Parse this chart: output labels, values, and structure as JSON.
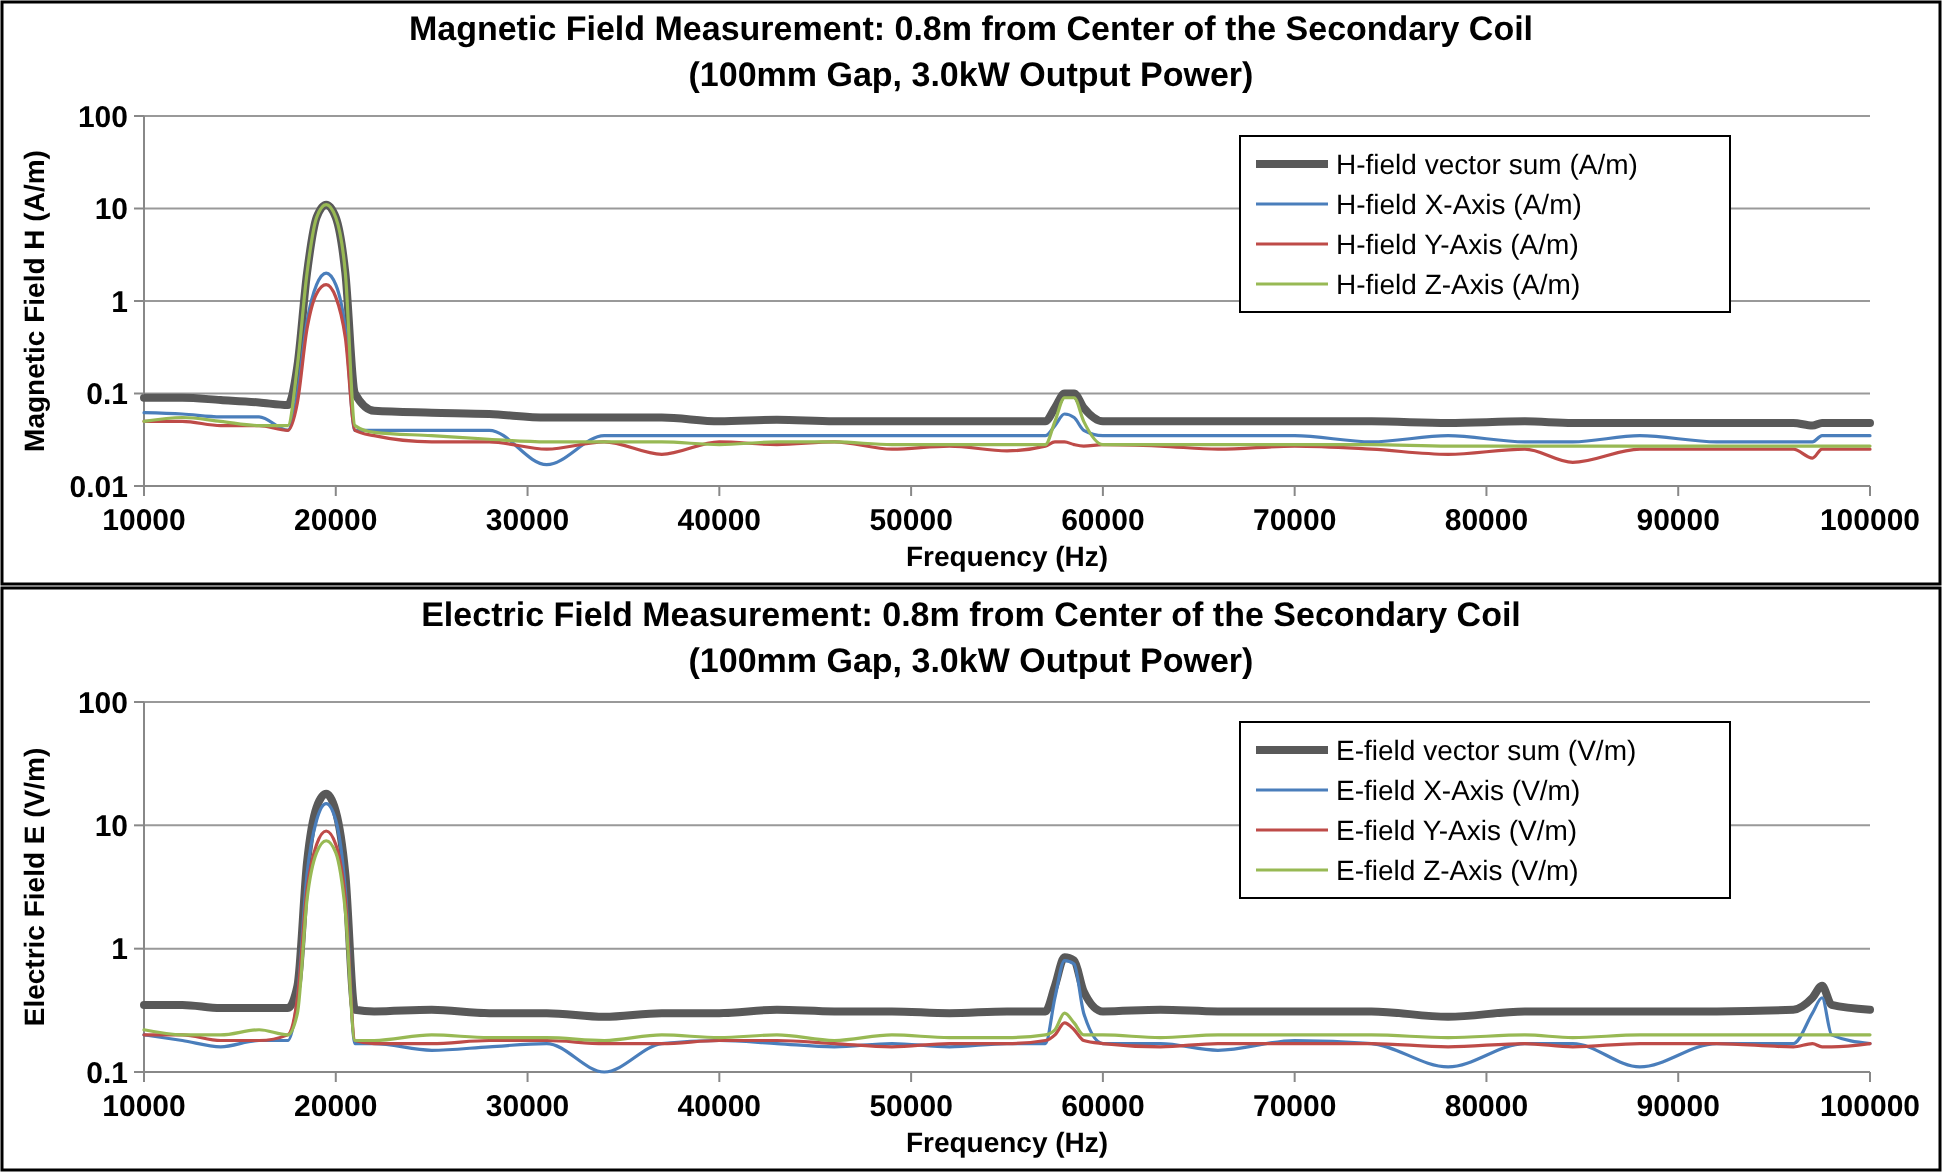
{
  "chart_data": [
    {
      "type": "line",
      "title": "Magnetic Field Measurement: 0.8m from Center of the Secondary Coil",
      "subtitle": "(100mm Gap, 3.0kW Output Power)",
      "xlabel": "Frequency (Hz)",
      "ylabel": "Magnetic Field H (A/m)",
      "log": "y",
      "grid": "y",
      "legend": "top right",
      "xlim": [
        10000,
        100000
      ],
      "xticks": [
        10000,
        20000,
        30000,
        40000,
        50000,
        60000,
        70000,
        80000,
        90000,
        100000
      ],
      "ylim": [
        0.01,
        100
      ],
      "yticks": [
        0.01,
        0.1,
        1,
        10,
        100
      ],
      "x": [
        10000,
        12000,
        14000,
        16000,
        17500,
        18000,
        18500,
        19000,
        19500,
        20000,
        20500,
        21000,
        22000,
        25000,
        28000,
        31000,
        34000,
        37000,
        40000,
        43000,
        46000,
        49000,
        52000,
        55000,
        57000,
        57500,
        58000,
        58500,
        59000,
        60000,
        63000,
        66000,
        70000,
        74000,
        78000,
        82000,
        84500,
        88000,
        92000,
        96000,
        97000,
        97500,
        98000,
        100000
      ],
      "series": [
        {
          "name": "H-field vector sum (A/m)",
          "color": "#595959",
          "values": [
            0.09,
            0.09,
            0.085,
            0.08,
            0.075,
            0.2,
            2,
            8,
            11,
            8,
            2,
            0.1,
            0.065,
            0.062,
            0.06,
            0.055,
            0.055,
            0.055,
            0.05,
            0.052,
            0.05,
            0.05,
            0.05,
            0.05,
            0.05,
            0.07,
            0.1,
            0.1,
            0.07,
            0.05,
            0.05,
            0.05,
            0.05,
            0.05,
            0.048,
            0.05,
            0.048,
            0.048,
            0.048,
            0.048,
            0.045,
            0.048,
            0.048,
            0.048
          ]
        },
        {
          "name": "H-field X-Axis (A/m)",
          "color": "#4a7ebb",
          "values": [
            0.062,
            0.06,
            0.056,
            0.056,
            0.04,
            0.1,
            0.6,
            1.5,
            2,
            1.5,
            0.5,
            0.04,
            0.04,
            0.04,
            0.04,
            0.017,
            0.035,
            0.035,
            0.035,
            0.035,
            0.035,
            0.035,
            0.035,
            0.035,
            0.035,
            0.045,
            0.06,
            0.055,
            0.04,
            0.035,
            0.035,
            0.035,
            0.035,
            0.03,
            0.035,
            0.03,
            0.03,
            0.035,
            0.03,
            0.03,
            0.03,
            0.035,
            0.035,
            0.035
          ]
        },
        {
          "name": "H-field Y-Axis (A/m)",
          "color": "#be4b48",
          "values": [
            0.05,
            0.05,
            0.045,
            0.045,
            0.04,
            0.08,
            0.5,
            1.2,
            1.5,
            1.1,
            0.4,
            0.04,
            0.035,
            0.03,
            0.03,
            0.025,
            0.03,
            0.022,
            0.03,
            0.028,
            0.03,
            0.025,
            0.027,
            0.024,
            0.027,
            0.03,
            0.03,
            0.028,
            0.027,
            0.028,
            0.027,
            0.025,
            0.027,
            0.025,
            0.022,
            0.025,
            0.018,
            0.025,
            0.025,
            0.025,
            0.02,
            0.025,
            0.025,
            0.025
          ]
        },
        {
          "name": "H-field Z-Axis (A/m)",
          "color": "#98b954",
          "values": [
            0.05,
            0.055,
            0.05,
            0.045,
            0.045,
            0.2,
            2,
            8,
            11,
            8,
            2,
            0.045,
            0.038,
            0.035,
            0.032,
            0.03,
            0.03,
            0.03,
            0.028,
            0.03,
            0.03,
            0.028,
            0.028,
            0.028,
            0.028,
            0.05,
            0.09,
            0.09,
            0.05,
            0.028,
            0.028,
            0.028,
            0.028,
            0.028,
            0.027,
            0.027,
            0.027,
            0.027,
            0.027,
            0.027,
            0.027,
            0.027,
            0.027,
            0.027
          ]
        }
      ]
    },
    {
      "type": "line",
      "title": "Electric Field Measurement: 0.8m from Center of the Secondary Coil",
      "subtitle": "(100mm Gap, 3.0kW Output Power)",
      "xlabel": "Frequency (Hz)",
      "ylabel": "Electric Field E (V/m)",
      "log": "y",
      "grid": "y",
      "legend": "top right",
      "xlim": [
        10000,
        100000
      ],
      "xticks": [
        10000,
        20000,
        30000,
        40000,
        50000,
        60000,
        70000,
        80000,
        90000,
        100000
      ],
      "ylim": [
        0.1,
        100
      ],
      "yticks": [
        0.1,
        1,
        10,
        100
      ],
      "x": [
        10000,
        12000,
        14000,
        16000,
        17500,
        18000,
        18500,
        19000,
        19500,
        20000,
        20500,
        21000,
        22000,
        25000,
        28000,
        31000,
        34000,
        37000,
        40000,
        43000,
        46000,
        49000,
        52000,
        55000,
        57000,
        57500,
        58000,
        58500,
        59000,
        60000,
        63000,
        66000,
        70000,
        74000,
        78000,
        82000,
        84500,
        88000,
        92000,
        96000,
        97000,
        97500,
        98000,
        100000
      ],
      "series": [
        {
          "name": "E-field vector sum (V/m)",
          "color": "#595959",
          "values": [
            0.35,
            0.35,
            0.33,
            0.33,
            0.33,
            0.5,
            5,
            14,
            18,
            13,
            4,
            0.32,
            0.31,
            0.32,
            0.3,
            0.3,
            0.28,
            0.3,
            0.3,
            0.32,
            0.31,
            0.31,
            0.3,
            0.31,
            0.31,
            0.5,
            0.85,
            0.8,
            0.45,
            0.31,
            0.32,
            0.31,
            0.31,
            0.31,
            0.28,
            0.31,
            0.31,
            0.31,
            0.31,
            0.32,
            0.4,
            0.5,
            0.35,
            0.32
          ]
        },
        {
          "name": "E-field X-Axis (V/m)",
          "color": "#4a7ebb",
          "values": [
            0.2,
            0.18,
            0.16,
            0.18,
            0.18,
            0.4,
            4,
            11,
            15,
            11,
            3,
            0.17,
            0.17,
            0.15,
            0.16,
            0.17,
            0.1,
            0.17,
            0.18,
            0.17,
            0.16,
            0.17,
            0.16,
            0.17,
            0.17,
            0.4,
            0.8,
            0.75,
            0.3,
            0.17,
            0.17,
            0.15,
            0.18,
            0.17,
            0.11,
            0.17,
            0.17,
            0.11,
            0.17,
            0.17,
            0.3,
            0.4,
            0.2,
            0.17
          ]
        },
        {
          "name": "E-field Y-Axis (V/m)",
          "color": "#be4b48",
          "values": [
            0.2,
            0.2,
            0.18,
            0.18,
            0.2,
            0.4,
            3,
            7,
            9,
            7,
            2.5,
            0.18,
            0.17,
            0.17,
            0.18,
            0.18,
            0.17,
            0.17,
            0.18,
            0.18,
            0.17,
            0.16,
            0.17,
            0.17,
            0.18,
            0.2,
            0.25,
            0.22,
            0.18,
            0.17,
            0.16,
            0.17,
            0.17,
            0.17,
            0.16,
            0.17,
            0.16,
            0.17,
            0.17,
            0.16,
            0.17,
            0.16,
            0.16,
            0.17
          ]
        },
        {
          "name": "E-field Z-Axis (V/m)",
          "color": "#98b954",
          "values": [
            0.22,
            0.2,
            0.2,
            0.22,
            0.2,
            0.3,
            2.5,
            6,
            7.5,
            6,
            2,
            0.18,
            0.18,
            0.2,
            0.19,
            0.19,
            0.18,
            0.2,
            0.19,
            0.2,
            0.18,
            0.2,
            0.19,
            0.19,
            0.2,
            0.22,
            0.3,
            0.25,
            0.2,
            0.2,
            0.19,
            0.2,
            0.2,
            0.2,
            0.19,
            0.2,
            0.19,
            0.2,
            0.2,
            0.2,
            0.2,
            0.2,
            0.2,
            0.2
          ]
        }
      ]
    }
  ]
}
